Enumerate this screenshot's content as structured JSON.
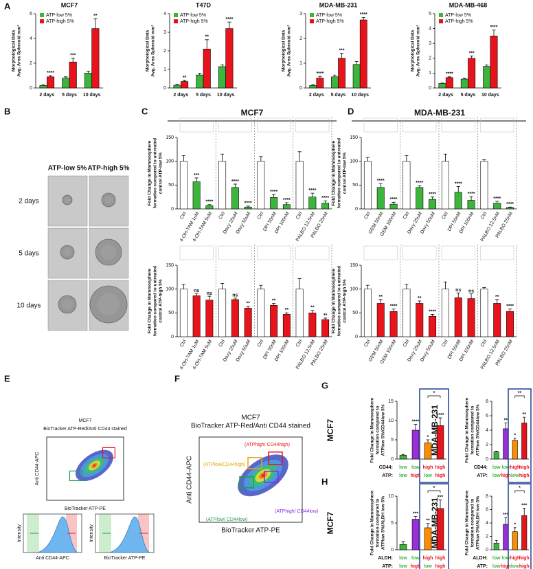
{
  "panel_labels": [
    "A",
    "B",
    "C",
    "D",
    "E",
    "F",
    "G",
    "H"
  ],
  "headings": [
    "MCF7",
    "MDA-MB-231"
  ],
  "panel_b": {
    "columns": [
      "ATP-low 5%",
      "ATP-high 5%"
    ],
    "rows": [
      "2 days",
      "5 days",
      "10 days"
    ]
  },
  "panel_e": {
    "title": "MCF7",
    "subtitle": "BioTracker ATP-Red/Anti CD44 stained",
    "ylabel": "Anti CD44-APC",
    "xlabel": "BioTracker ATP-PE",
    "histograms": [
      {
        "ylabel": "Intensity",
        "xlabel": "Anti CD44-APC"
      },
      {
        "ylabel": "Intensity",
        "xlabel": "BioTracker ATP-PE"
      }
    ]
  },
  "panel_f": {
    "title": "MCF7",
    "subtitle": "BioTracker ATP-Red/Anti CD44 stained",
    "ylabel": "Anti CD44-APC",
    "xlabel": "BioTracker ATP-PE",
    "gates": [
      {
        "label": "(ATPhigh/ CD44high)",
        "color": "#e8141b"
      },
      {
        "label": "(ATPlow/CD44high)",
        "color": "#e8a400"
      },
      {
        "label": "(ATPhigh/ CD44low)",
        "color": "#8a2be2"
      },
      {
        "label": "(ATPlow/ CD44low)",
        "color": "#1fa04a"
      }
    ]
  },
  "chart_data": [
    {
      "type": "bar",
      "title": "MCF7",
      "ylabel": [
        "Morphological Data",
        "Avg. Area Spheroid mm²"
      ],
      "categories": [
        "2 days",
        "5 days",
        "10 days"
      ],
      "ylim": [
        0,
        6
      ],
      "yticks": [
        0,
        2,
        4,
        6
      ],
      "series": [
        {
          "name": "ATP-low 5%",
          "color": "#3cb53c",
          "values": [
            0.2,
            0.8,
            1.2
          ],
          "errors": [
            0.05,
            0.1,
            0.15
          ],
          "annotations": [
            null,
            null,
            null
          ]
        },
        {
          "name": "ATP-high 5%",
          "color": "#e8141b",
          "values": [
            0.9,
            2.1,
            4.8
          ],
          "errors": [
            0.1,
            0.3,
            0.8
          ],
          "annotations": [
            "****",
            "***",
            "**"
          ]
        }
      ]
    },
    {
      "type": "bar",
      "title": "T47D",
      "ylabel": [
        "Morphological Data",
        "Avg. Area Spheroid mm²"
      ],
      "categories": [
        "2 days",
        "5 days",
        "10 days"
      ],
      "ylim": [
        0,
        4
      ],
      "yticks": [
        0,
        1,
        2,
        3,
        4
      ],
      "series": [
        {
          "name": "ATP-low 5%",
          "color": "#3cb53c",
          "values": [
            0.15,
            0.7,
            1.15
          ],
          "errors": [
            0.05,
            0.1,
            0.1
          ],
          "annotations": [
            null,
            null,
            null
          ]
        },
        {
          "name": "ATP-high 5%",
          "color": "#e8141b",
          "values": [
            0.35,
            2.1,
            3.2
          ],
          "errors": [
            0.05,
            0.5,
            0.35
          ],
          "annotations": [
            "**",
            "**",
            "****"
          ]
        }
      ]
    },
    {
      "type": "bar",
      "title": "MDA-MB-231",
      "ylabel": [
        "Morphological Data",
        "Avg. Area Spheroid mm²"
      ],
      "categories": [
        "2 days",
        "5 days",
        "10 days"
      ],
      "ylim": [
        0,
        3
      ],
      "yticks": [
        0,
        1,
        2,
        3
      ],
      "series": [
        {
          "name": "ATP-low 5%",
          "color": "#3cb53c",
          "values": [
            0.1,
            0.45,
            0.95
          ],
          "errors": [
            0.03,
            0.07,
            0.12
          ],
          "annotations": [
            null,
            null,
            null
          ]
        },
        {
          "name": "ATP-high 5%",
          "color": "#e8141b",
          "values": [
            0.4,
            1.2,
            2.75
          ],
          "errors": [
            0.07,
            0.2,
            0.1
          ],
          "annotations": [
            "****",
            "***",
            "****"
          ]
        }
      ]
    },
    {
      "type": "bar",
      "title": "MDA-MB-468",
      "ylabel": [
        "Morphological Data",
        "Avg. Area Spheroid mm²"
      ],
      "categories": [
        "2 days",
        "5 days",
        "10 days"
      ],
      "ylim": [
        0,
        5
      ],
      "yticks": [
        0,
        1,
        2,
        3,
        4,
        5
      ],
      "series": [
        {
          "name": "ATP-low 5%",
          "color": "#3cb53c",
          "values": [
            0.3,
            0.6,
            1.45
          ],
          "errors": [
            0.03,
            0.05,
            0.1
          ],
          "annotations": [
            null,
            null,
            null
          ]
        },
        {
          "name": "ATP-high 5%",
          "color": "#e8141b",
          "values": [
            0.7,
            2.0,
            3.5
          ],
          "errors": [
            0.05,
            0.15,
            0.4
          ],
          "annotations": [
            "****",
            "***",
            "****"
          ]
        }
      ]
    },
    {
      "type": "bar",
      "ylabel": [
        "Fold Change in Mammosphere",
        "formation compared to untreated",
        "control ATP-low 5%"
      ],
      "categories": [
        "Ctrl",
        "4-OH-TAM 1uM",
        "4-OH-TAM 5uM",
        "Ctrl",
        "Doxy 25uM",
        "Doxy 50uM",
        "Ctrl",
        "DPI 50nM",
        "DPI 100nM",
        "Ctrl",
        "PALBO 12.5nM",
        "PALBO 25nM"
      ],
      "ylim": [
        0,
        150
      ],
      "yticks": [
        0,
        50,
        100,
        150
      ],
      "values": [
        100,
        57,
        7,
        100,
        45,
        4,
        100,
        24,
        9,
        100,
        25,
        12
      ],
      "errors": [
        12,
        8,
        2,
        15,
        7,
        2,
        10,
        6,
        4,
        20,
        8,
        5
      ],
      "annotations": [
        null,
        "***",
        "****",
        null,
        "****",
        "****",
        null,
        "****",
        "****",
        null,
        "****",
        "****"
      ],
      "bar_colors": [
        "#ffffff",
        "#3cb53c",
        "#3cb53c",
        "#ffffff",
        "#3cb53c",
        "#3cb53c",
        "#ffffff",
        "#3cb53c",
        "#3cb53c",
        "#ffffff",
        "#3cb53c",
        "#3cb53c"
      ]
    },
    {
      "type": "bar",
      "ylabel": [
        "Fold Change in Mammosphere",
        "formation compared to untreated",
        "control ATP-high 5%"
      ],
      "categories": [
        "Ctrl",
        "4-OH-TAM 1uM",
        "4-OH-TAM 5uM",
        "Ctrl",
        "Doxy 25uM",
        "Doxy 50uM",
        "Ctrl",
        "DPI 50nM",
        "DPI 100nM",
        "Ctrl",
        "PALBO 12.5nM",
        "PALBO 25nM"
      ],
      "ylim": [
        0,
        150
      ],
      "yticks": [
        0,
        50,
        100,
        150
      ],
      "values": [
        100,
        86,
        77,
        100,
        78,
        60,
        100,
        66,
        47,
        100,
        50,
        36
      ],
      "errors": [
        10,
        5,
        8,
        12,
        3,
        4,
        8,
        4,
        3,
        22,
        5,
        3
      ],
      "annotations": [
        null,
        "ns",
        "ns",
        null,
        "ns",
        "**",
        null,
        "**",
        "**",
        null,
        "**",
        "**"
      ],
      "bar_colors": [
        "#ffffff",
        "#e8141b",
        "#e8141b",
        "#ffffff",
        "#e8141b",
        "#e8141b",
        "#ffffff",
        "#e8141b",
        "#e8141b",
        "#ffffff",
        "#e8141b",
        "#e8141b"
      ]
    },
    {
      "type": "bar",
      "ylabel": [
        "Fold Change in Mammosphere",
        "formation compared to untreated",
        "control ATP-low 5%"
      ],
      "categories": [
        "Ctrl",
        "GEM 50nM",
        "GEM 100nM",
        "Ctrl",
        "Doxy 25uM",
        "Doxy 50uM",
        "Ctrl",
        "DPI 50nM",
        "DPI 100nM",
        "Ctrl",
        "PALBO 12.5nM",
        "PALBO 25nM"
      ],
      "ylim": [
        0,
        150
      ],
      "yticks": [
        0,
        50,
        100,
        150
      ],
      "values": [
        100,
        45,
        10,
        100,
        45,
        20,
        100,
        35,
        18,
        100,
        12,
        3
      ],
      "errors": [
        8,
        8,
        4,
        12,
        4,
        5,
        15,
        12,
        8,
        3,
        4,
        1
      ],
      "annotations": [
        null,
        "****",
        "****",
        null,
        "****",
        "****",
        null,
        "****",
        "****",
        null,
        "****",
        "****"
      ],
      "bar_colors": [
        "#ffffff",
        "#3cb53c",
        "#3cb53c",
        "#ffffff",
        "#3cb53c",
        "#3cb53c",
        "#ffffff",
        "#3cb53c",
        "#3cb53c",
        "#ffffff",
        "#3cb53c",
        "#3cb53c"
      ]
    },
    {
      "type": "bar",
      "ylabel": [
        "Fold Change in Mammosphere",
        "formation compared to untreated",
        "control ATP-high 5%"
      ],
      "categories": [
        "Ctrl",
        "GEM 50nM",
        "GEM 100nM",
        "Ctrl",
        "Doxy 25uM",
        "Doxy 50uM",
        "Ctrl",
        "DPI 50nM",
        "DPI 100nM",
        "Ctrl",
        "PALBO 12.5nM",
        "PALBO 25nM"
      ],
      "ylim": [
        0,
        150
      ],
      "yticks": [
        0,
        50,
        100,
        150
      ],
      "values": [
        100,
        70,
        53,
        100,
        70,
        43,
        100,
        82,
        80,
        100,
        70,
        53
      ],
      "errors": [
        8,
        8,
        5,
        10,
        5,
        4,
        15,
        10,
        10,
        3,
        8,
        5
      ],
      "annotations": [
        null,
        "**",
        "****",
        null,
        "**",
        "****",
        null,
        "ns",
        "ns",
        null,
        "**",
        "****"
      ],
      "bar_colors": [
        "#ffffff",
        "#e8141b",
        "#e8141b",
        "#ffffff",
        "#e8141b",
        "#e8141b",
        "#ffffff",
        "#e8141b",
        "#e8141b",
        "#ffffff",
        "#e8141b",
        "#e8141b"
      ]
    },
    {
      "type": "bar",
      "title": "MCF7",
      "ylabel": [
        "Fold Change in Mammosphere",
        "formation compared to",
        "ATPlow 5%/CD44low 5%"
      ],
      "ylim": [
        0,
        15
      ],
      "yticks": [
        0,
        5,
        10,
        15
      ],
      "values": [
        1,
        7.5,
        4.2,
        8.7
      ],
      "errors": [
        0.2,
        1.5,
        0.8,
        2
      ],
      "annotations": [
        null,
        "****",
        "*",
        "****"
      ],
      "bar_colors": [
        "#3cb53c",
        "#9b30d9",
        "#ff8c00",
        "#e8141b"
      ],
      "bracket_label": "*",
      "rows": [
        {
          "name": "CD44:",
          "labels": [
            "low",
            "low",
            "high",
            "high"
          ],
          "colors": [
            "#3cb53c",
            "#3cb53c",
            "#e8141b",
            "#e8141b"
          ]
        },
        {
          "name": "ATP:",
          "labels": [
            "low",
            "high",
            "low",
            "high"
          ],
          "colors": [
            "#3cb53c",
            "#e8141b",
            "#3cb53c",
            "#e8141b"
          ]
        }
      ]
    },
    {
      "type": "bar",
      "title": "MDA-MB-231",
      "ylabel": [
        "Fold Change in Mammosphere",
        "formation compared to",
        "ATPlow 5%/CD44low 5%"
      ],
      "ylim": [
        0,
        8
      ],
      "yticks": [
        0,
        2,
        4,
        6,
        8
      ],
      "values": [
        1,
        4.2,
        2.6,
        5.0
      ],
      "errors": [
        0.1,
        0.8,
        0.3,
        0.8
      ],
      "annotations": [
        null,
        "**",
        "*",
        "**"
      ],
      "bar_colors": [
        "#3cb53c",
        "#9b30d9",
        "#ff8c00",
        "#e8141b"
      ],
      "bracket_label": "**",
      "rows": [
        {
          "name": "CD44:",
          "labels": [
            "low",
            "low",
            "high",
            "high"
          ],
          "colors": [
            "#3cb53c",
            "#3cb53c",
            "#e8141b",
            "#e8141b"
          ]
        },
        {
          "name": "ATP:",
          "labels": [
            "low",
            "high",
            "low",
            "high"
          ],
          "colors": [
            "#3cb53c",
            "#e8141b",
            "#3cb53c",
            "#e8141b"
          ]
        }
      ]
    },
    {
      "type": "bar",
      "title": "MCF7",
      "ylabel": [
        "Fold Change in Mammosphere",
        "formation compared to",
        "ATPlow 5%/ALDH low 5%"
      ],
      "ylim": [
        0,
        10
      ],
      "yticks": [
        0,
        5,
        10
      ],
      "values": [
        1,
        5.7,
        4.1,
        7.7
      ],
      "errors": [
        0.5,
        0.5,
        0.8,
        1.6
      ],
      "annotations": [
        null,
        "***",
        "**",
        "***"
      ],
      "bar_colors": [
        "#3cb53c",
        "#9b30d9",
        "#ff8c00",
        "#e8141b"
      ],
      "bracket_label": "*",
      "rows": [
        {
          "name": "ALDH:",
          "labels": [
            "low",
            "low",
            "high",
            "high"
          ],
          "colors": [
            "#3cb53c",
            "#3cb53c",
            "#e8141b",
            "#e8141b"
          ]
        },
        {
          "name": "ATP:",
          "labels": [
            "low",
            "high",
            "low",
            "high"
          ],
          "colors": [
            "#3cb53c",
            "#e8141b",
            "#3cb53c",
            "#e8141b"
          ]
        }
      ]
    },
    {
      "type": "bar",
      "title": "MDA-MB-231",
      "ylabel": [
        "Fold Change in Mammosphere",
        "formation compared to",
        "ATPlow 5%/ALDH low 5%"
      ],
      "ylim": [
        0,
        8
      ],
      "yticks": [
        0,
        2,
        4,
        6,
        8
      ],
      "values": [
        1,
        3.8,
        2.7,
        5.1
      ],
      "errors": [
        0.4,
        1,
        0.6,
        1.1
      ],
      "annotations": [
        null,
        "***",
        "*",
        "***"
      ],
      "bar_colors": [
        "#3cb53c",
        "#9b30d9",
        "#ff8c00",
        "#e8141b"
      ],
      "bracket_label": "*",
      "rows": [
        {
          "name": "ALDH:",
          "labels": [
            "low",
            "low",
            "high",
            "high"
          ],
          "colors": [
            "#3cb53c",
            "#3cb53c",
            "#e8141b",
            "#e8141b"
          ]
        },
        {
          "name": "ATP:",
          "labels": [
            "low",
            "high",
            "low",
            "high"
          ],
          "colors": [
            "#3cb53c",
            "#e8141b",
            "#3cb53c",
            "#e8141b"
          ]
        }
      ]
    }
  ]
}
